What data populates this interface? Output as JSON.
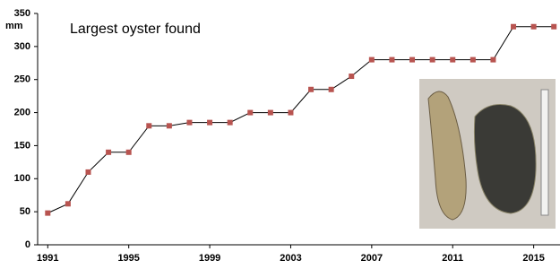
{
  "chart_data": {
    "type": "line",
    "title": "Largest oyster found",
    "y_unit": "mm",
    "x": [
      1991,
      1992,
      1993,
      1994,
      1995,
      1996,
      1997,
      1998,
      1999,
      2000,
      2001,
      2002,
      2003,
      2004,
      2005,
      2006,
      2007,
      2008,
      2009,
      2010,
      2011,
      2012,
      2013,
      2014,
      2015,
      2016
    ],
    "series": [
      {
        "color": "#b85450",
        "values": [
          48,
          62,
          110,
          140,
          140,
          180,
          180,
          185,
          185,
          185,
          200,
          200,
          200,
          235,
          235,
          255,
          280,
          280,
          280,
          280,
          280,
          280,
          280,
          330,
          330,
          330
        ]
      }
    ],
    "xlim": [
      1990.5,
      2016.3
    ],
    "xticks": [
      1991,
      1995,
      1999,
      2003,
      2007,
      2011,
      2015
    ],
    "ylim": [
      0,
      350
    ],
    "yticks": [
      0,
      50,
      100,
      150,
      200,
      250,
      300,
      350
    ]
  }
}
